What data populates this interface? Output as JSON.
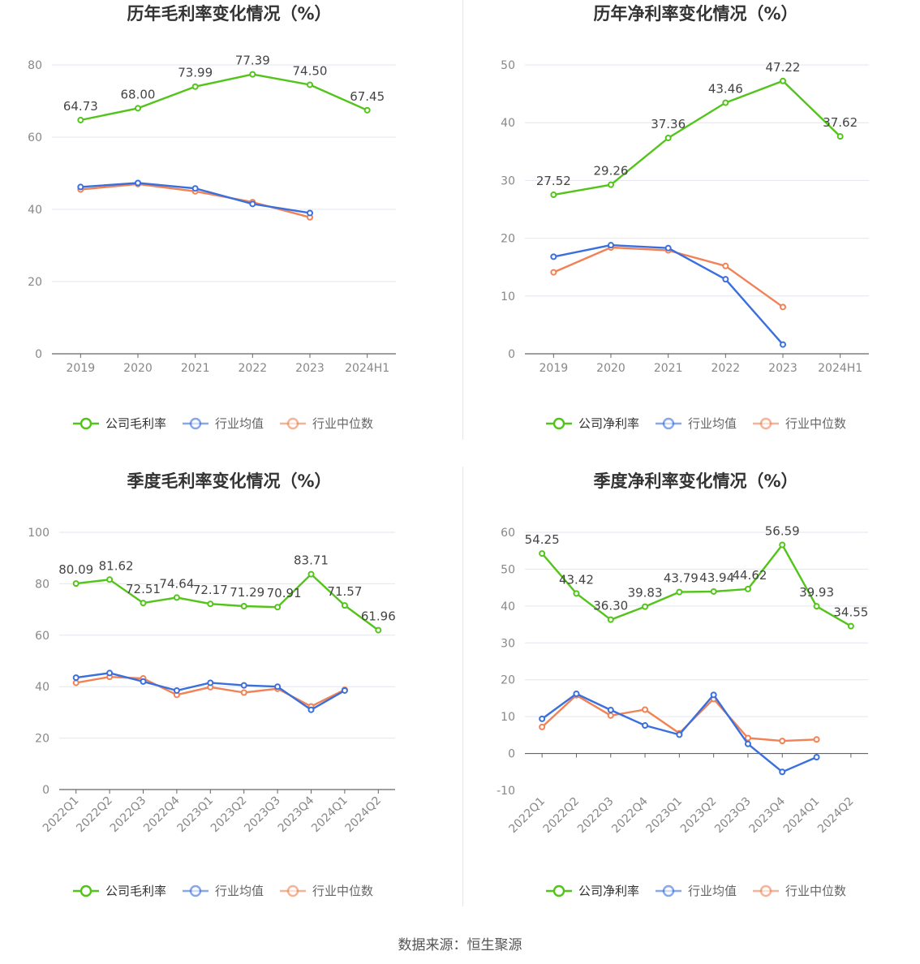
{
  "source": "数据来源：恒生聚源",
  "legend_colors": {
    "company": "#52c41a",
    "avg": "#3a6fdd",
    "median": "#f08255"
  },
  "chart_data": [
    {
      "type": "line",
      "title": "历年毛利率变化情况（%）",
      "x": [
        "2019",
        "2020",
        "2021",
        "2022",
        "2023",
        "2024H1"
      ],
      "ylim": [
        0,
        80
      ],
      "yticks": [
        0,
        20,
        40,
        60,
        80
      ],
      "grid": true,
      "legend_position": "bottom",
      "series": [
        {
          "name": "公司毛利率",
          "color": "#52c41a",
          "values": [
            64.73,
            68.0,
            73.99,
            77.39,
            74.5,
            67.45
          ],
          "labels": [
            "64.73",
            "68.00",
            "73.99",
            "77.39",
            "74.50",
            "67.45"
          ]
        },
        {
          "name": "行业均值",
          "color": "#3a6fdd",
          "values": [
            46.2,
            47.3,
            45.8,
            41.5,
            39.0,
            null
          ]
        },
        {
          "name": "行业中位数",
          "color": "#f08255",
          "values": [
            45.5,
            47.0,
            45.0,
            42.0,
            37.8,
            null
          ]
        }
      ]
    },
    {
      "type": "line",
      "title": "历年净利率变化情况（%）",
      "x": [
        "2019",
        "2020",
        "2021",
        "2022",
        "2023",
        "2024H1"
      ],
      "ylim": [
        0,
        50
      ],
      "yticks": [
        0,
        10,
        20,
        30,
        40,
        50
      ],
      "grid": true,
      "legend_position": "bottom",
      "series": [
        {
          "name": "公司净利率",
          "color": "#52c41a",
          "values": [
            27.52,
            29.26,
            37.36,
            43.46,
            47.22,
            37.62
          ],
          "labels": [
            "27.52",
            "29.26",
            "37.36",
            "43.46",
            "47.22",
            "37.62"
          ]
        },
        {
          "name": "行业均值",
          "color": "#3a6fdd",
          "values": [
            16.8,
            18.8,
            18.3,
            12.9,
            1.6,
            null
          ]
        },
        {
          "name": "行业中位数",
          "color": "#f08255",
          "values": [
            14.1,
            18.4,
            17.9,
            15.2,
            8.1,
            null
          ]
        }
      ]
    },
    {
      "type": "line",
      "title": "季度毛利率变化情况（%）",
      "x": [
        "2022Q1",
        "2022Q2",
        "2022Q3",
        "2022Q4",
        "2023Q1",
        "2023Q2",
        "2023Q3",
        "2023Q4",
        "2024Q1",
        "2024Q2"
      ],
      "ylim": [
        0,
        100
      ],
      "yticks": [
        0,
        20,
        40,
        60,
        80,
        100
      ],
      "grid": true,
      "legend_position": "bottom",
      "series": [
        {
          "name": "公司毛利率",
          "color": "#52c41a",
          "values": [
            80.09,
            81.62,
            72.51,
            74.64,
            72.17,
            71.29,
            70.91,
            83.71,
            71.57,
            61.96
          ],
          "labels": [
            "80.09",
            "81.62",
            "72.51",
            "74.64",
            "72.17",
            "71.29",
            "70.91",
            "83.71",
            "71.57",
            "61.96"
          ]
        },
        {
          "name": "行业均值",
          "color": "#3a6fdd",
          "values": [
            43.5,
            45.3,
            42.0,
            38.5,
            41.5,
            40.5,
            40.0,
            31.0,
            38.5,
            null
          ]
        },
        {
          "name": "行业中位数",
          "color": "#f08255",
          "values": [
            41.5,
            43.8,
            43.2,
            36.8,
            39.8,
            37.7,
            39.2,
            32.3,
            38.8,
            null
          ]
        }
      ]
    },
    {
      "type": "line",
      "title": "季度净利率变化情况（%）",
      "x": [
        "2022Q1",
        "2022Q2",
        "2022Q3",
        "2022Q4",
        "2023Q1",
        "2023Q2",
        "2023Q3",
        "2023Q4",
        "2024Q1",
        "2024Q2"
      ],
      "ylim": [
        -10,
        60
      ],
      "yticks": [
        -10,
        0,
        10,
        20,
        30,
        40,
        50,
        60
      ],
      "grid": true,
      "legend_position": "bottom",
      "series": [
        {
          "name": "公司净利率",
          "color": "#52c41a",
          "values": [
            54.25,
            43.42,
            36.3,
            39.83,
            43.79,
            43.94,
            44.62,
            56.59,
            39.93,
            34.55
          ],
          "labels": [
            "54.25",
            "43.42",
            "36.30",
            "39.83",
            "43.79",
            "43.94",
            "44.62",
            "56.59",
            "39.93",
            "34.55"
          ]
        },
        {
          "name": "行业均值",
          "color": "#3a6fdd",
          "values": [
            9.4,
            16.2,
            11.8,
            7.6,
            5.1,
            15.9,
            2.6,
            -5.0,
            -1.0,
            null
          ]
        },
        {
          "name": "行业中位数",
          "color": "#f08255",
          "values": [
            7.2,
            15.8,
            10.3,
            11.9,
            5.5,
            14.8,
            4.2,
            3.4,
            3.8,
            null
          ]
        }
      ]
    }
  ]
}
